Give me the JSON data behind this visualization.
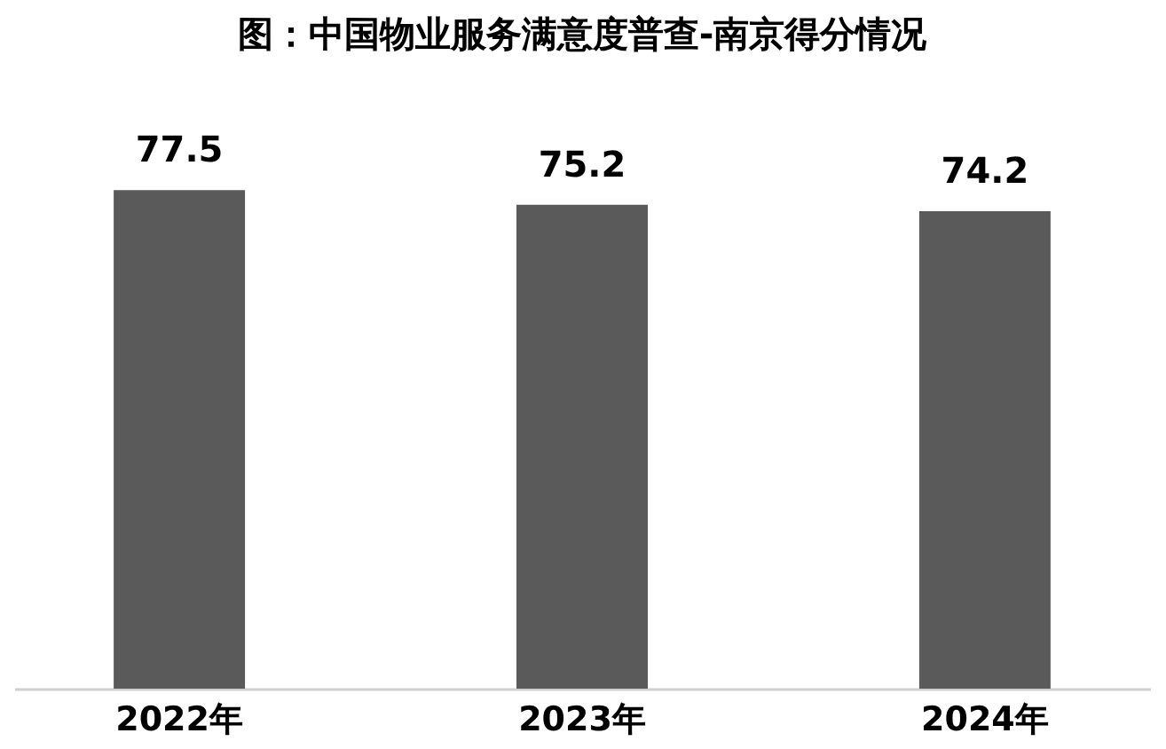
{
  "chart_data": {
    "type": "bar",
    "title": "图：中国物业服务满意度普查-南京得分情况",
    "categories": [
      "2022年",
      "2023年",
      "2024年"
    ],
    "values": [
      77.5,
      75.2,
      74.2
    ],
    "color": "#5a5a5a",
    "data_labels": true,
    "tick_labels": "x"
  }
}
